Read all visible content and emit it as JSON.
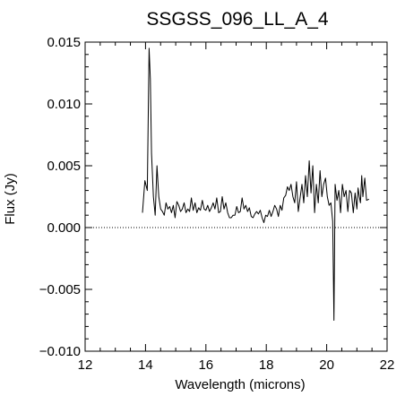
{
  "chart_data": {
    "type": "line",
    "title": "SSGSS_096_LL_A_4",
    "xlabel": "Wavelength (microns)",
    "ylabel": "Flux (Jy)",
    "xlim": [
      12,
      22
    ],
    "ylim": [
      -0.01,
      0.015
    ],
    "x_ticks": [
      12,
      14,
      16,
      18,
      20,
      22
    ],
    "x_tick_labels": [
      "12",
      "14",
      "16",
      "18",
      "20",
      "22"
    ],
    "y_ticks": [
      -0.01,
      -0.005,
      0.0,
      0.005,
      0.01,
      0.015
    ],
    "y_tick_labels": [
      "−0.010",
      "−0.005",
      "0.000",
      "0.005",
      "0.010",
      "0.015"
    ],
    "zero_line": "dotted",
    "grid": false,
    "series": [
      {
        "color": "#000000",
        "x": [
          13.9,
          13.98,
          14.06,
          14.12,
          14.16,
          14.2,
          14.26,
          14.32,
          14.38,
          14.44,
          14.5,
          14.56,
          14.62,
          14.68,
          14.74,
          14.8,
          14.86,
          14.92,
          14.98,
          15.04,
          15.1,
          15.16,
          15.22,
          15.28,
          15.34,
          15.4,
          15.46,
          15.52,
          15.58,
          15.64,
          15.7,
          15.76,
          15.82,
          15.88,
          15.94,
          16.0,
          16.06,
          16.12,
          16.18,
          16.24,
          16.3,
          16.36,
          16.42,
          16.48,
          16.54,
          16.6,
          16.66,
          16.72,
          16.78,
          16.84,
          16.9,
          16.96,
          17.02,
          17.08,
          17.14,
          17.2,
          17.26,
          17.32,
          17.38,
          17.44,
          17.5,
          17.56,
          17.62,
          17.68,
          17.74,
          17.8,
          17.86,
          17.92,
          17.98,
          18.04,
          18.1,
          18.16,
          18.22,
          18.28,
          18.34,
          18.4,
          18.46,
          18.52,
          18.58,
          18.64,
          18.7,
          18.76,
          18.82,
          18.88,
          18.94,
          19.0,
          19.06,
          19.12,
          19.18,
          19.24,
          19.3,
          19.36,
          19.42,
          19.48,
          19.54,
          19.6,
          19.66,
          19.72,
          19.78,
          19.84,
          19.9,
          19.96,
          20.02,
          20.08,
          20.14,
          20.2,
          20.24,
          20.28,
          20.34,
          20.4,
          20.46,
          20.52,
          20.58,
          20.64,
          20.7,
          20.76,
          20.82,
          20.88,
          20.94,
          21.0,
          21.04,
          21.08,
          21.12,
          21.16,
          21.2,
          21.26,
          21.32,
          21.4
        ],
        "y": [
          0.0012,
          0.0038,
          0.003,
          0.0145,
          0.012,
          0.006,
          0.0025,
          0.001,
          0.005,
          0.0025,
          0.0015,
          0.0013,
          0.001,
          0.002,
          0.0015,
          0.0017,
          0.0012,
          0.0018,
          0.0008,
          0.0021,
          0.0018,
          0.0013,
          0.0015,
          0.002,
          0.0012,
          0.0015,
          0.0013,
          0.0024,
          0.0014,
          0.002,
          0.0012,
          0.0016,
          0.0014,
          0.0022,
          0.0015,
          0.0014,
          0.0018,
          0.0013,
          0.0016,
          0.002,
          0.0015,
          0.0024,
          0.0012,
          0.0013,
          0.0025,
          0.0015,
          0.002,
          0.0012,
          0.0008,
          0.0008,
          0.001,
          0.001,
          0.0017,
          0.0012,
          0.0013,
          0.0024,
          0.0015,
          0.0018,
          0.0013,
          0.0016,
          0.0009,
          0.0008,
          0.0011,
          0.0013,
          0.0011,
          0.0014,
          0.0008,
          0.0004,
          0.001,
          0.0009,
          0.0014,
          0.0009,
          0.0013,
          0.0018,
          0.0015,
          0.0009,
          0.0018,
          0.0014,
          0.0024,
          0.0026,
          0.0033,
          0.003,
          0.0035,
          0.0025,
          0.002,
          0.0037,
          0.0013,
          0.0024,
          0.0035,
          0.002,
          0.0042,
          0.0025,
          0.0054,
          0.0028,
          0.005,
          0.0012,
          0.0035,
          0.002,
          0.0046,
          0.0025,
          0.0035,
          0.004,
          0.0025,
          0.0018,
          0.002,
          0.0005,
          -0.0075,
          0.0035,
          0.0022,
          0.003,
          0.0012,
          0.0035,
          0.0025,
          0.003,
          0.0013,
          0.003,
          0.0028,
          0.0012,
          0.0028,
          0.0015,
          0.0032,
          0.0025,
          0.002,
          0.0042,
          0.0025,
          0.004,
          0.0022,
          0.0023
        ]
      }
    ]
  }
}
